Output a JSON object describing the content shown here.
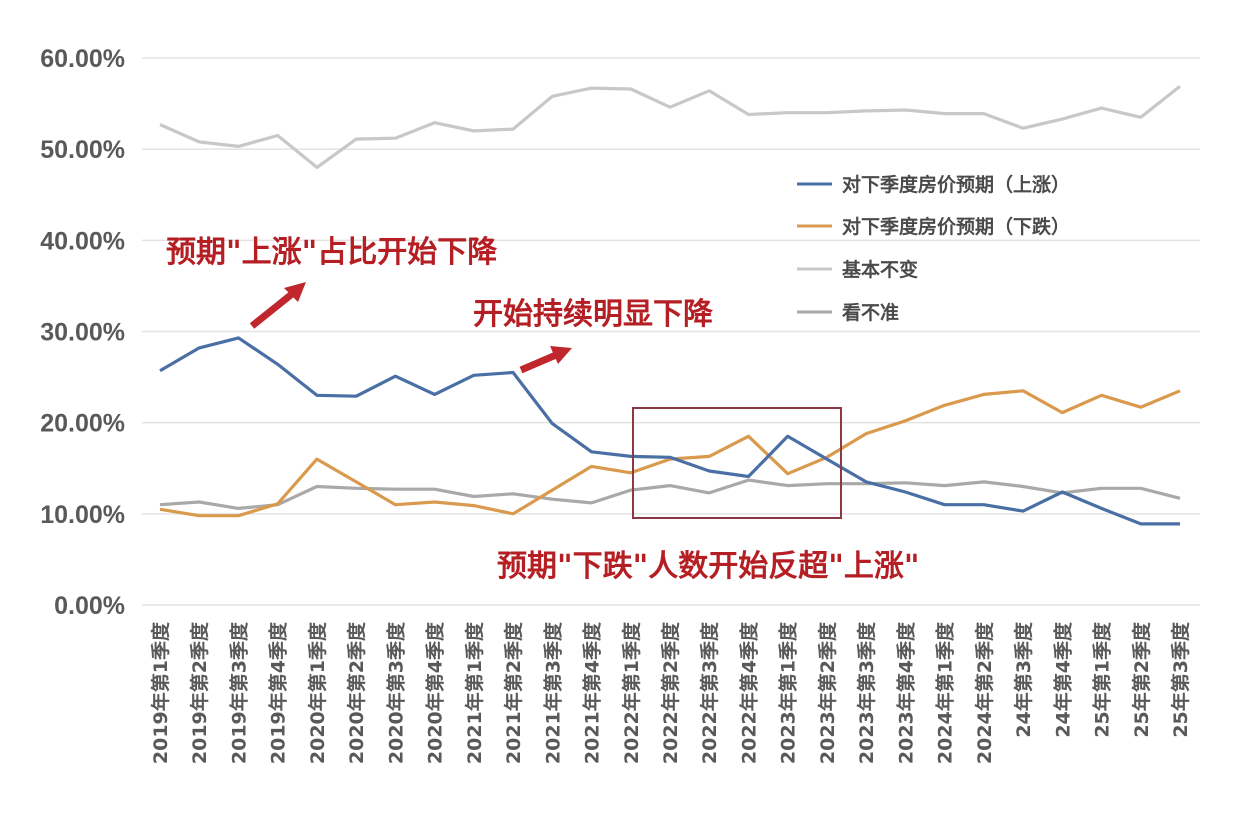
{
  "chart_data": {
    "type": "line",
    "title": "",
    "xlabel": "",
    "ylabel": "",
    "ylim": [
      0,
      60
    ],
    "yticks": [
      "0.00%",
      "10.00%",
      "20.00%",
      "30.00%",
      "40.00%",
      "50.00%",
      "60.00%"
    ],
    "grid": true,
    "legend_position": "upper right inside",
    "categories": [
      "2019年第1季度",
      "2019年第2季度",
      "2019年第3季度",
      "2019年第4季度",
      "2020年第1季度",
      "2020年第2季度",
      "2020年第3季度",
      "2020年第4季度",
      "2021年第1季度",
      "2021年第2季度",
      "2021年第3季度",
      "2021年第4季度",
      "2022年第1季度",
      "2022年第2季度",
      "2022年第3季度",
      "2022年第4季度",
      "2023年第1季度",
      "2023年第2季度",
      "2023年第3季度",
      "2023年第4季度",
      "2024年第1季度",
      "2024年第2季度",
      "24年第3季度",
      "24年第4季度",
      "25年第1季度",
      "25年第2季度",
      "25年第3季度"
    ],
    "series": [
      {
        "name": "对下季度房价预期（上涨）",
        "color": "#4a6fa5",
        "values": [
          25.7,
          28.2,
          29.3,
          26.4,
          23.0,
          22.9,
          25.1,
          23.1,
          25.2,
          25.5,
          19.9,
          16.8,
          16.3,
          16.2,
          14.7,
          14.1,
          18.5,
          16.0,
          13.5,
          12.4,
          11.0,
          11.0,
          10.3,
          12.4,
          10.6,
          8.9,
          8.9
        ]
      },
      {
        "name": "对下季度房价预期（下跌）",
        "color": "#d99a4e",
        "values": [
          10.5,
          9.8,
          9.8,
          11.1,
          16.0,
          13.5,
          11.0,
          11.3,
          10.9,
          10.0,
          12.6,
          15.2,
          14.5,
          16.0,
          16.3,
          18.5,
          14.4,
          16.2,
          18.8,
          20.2,
          21.9,
          23.1,
          23.5,
          21.1,
          23.0,
          21.7,
          23.5
        ]
      },
      {
        "name": "基本不变",
        "color": "#c8c8c8",
        "values": [
          52.7,
          50.8,
          50.3,
          51.5,
          48.0,
          51.1,
          51.2,
          52.9,
          52.0,
          52.2,
          55.8,
          56.7,
          56.6,
          54.6,
          56.4,
          53.8,
          54.0,
          54.0,
          54.2,
          54.3,
          53.9,
          53.9,
          52.3,
          53.3,
          54.5,
          53.5,
          56.9
        ]
      },
      {
        "name": "看不准",
        "color": "#a9a9a9",
        "values": [
          11.0,
          11.3,
          10.6,
          11.0,
          13.0,
          12.8,
          12.7,
          12.7,
          11.9,
          12.2,
          11.6,
          11.2,
          12.6,
          13.1,
          12.3,
          13.7,
          13.1,
          13.3,
          13.3,
          13.4,
          13.1,
          13.5,
          13.0,
          12.3,
          12.8,
          12.8,
          11.7
        ]
      }
    ],
    "annotations": [
      {
        "text": "预期\"上涨\"占比开始下降",
        "color": "#b51f24",
        "arrow": true
      },
      {
        "text": "开始持续明显下降",
        "color": "#b51f24",
        "arrow": true
      },
      {
        "text": "预期\"下跌\"人数开始反超\"上涨\"",
        "color": "#b51f24",
        "highlight_box": "2022年第1季度 to 2023年第2季度"
      }
    ]
  },
  "annotations": {
    "a1": "预期\"上涨\"占比开始下降",
    "a2": "开始持续明显下降",
    "a3": "预期\"下跌\"人数开始反超\"上涨\""
  },
  "legend": [
    {
      "label": "对下季度房价预期（上涨）",
      "color": "#4a6fa5"
    },
    {
      "label": "对下季度房价预期（下跌）",
      "color": "#d99a4e"
    },
    {
      "label": "基本不变",
      "color": "#c8c8c8"
    },
    {
      "label": "看不准",
      "color": "#a9a9a9"
    }
  ],
  "colors": {
    "grid": "#e3e3e3",
    "axis_text": "#595959",
    "annotation": "#b51f24",
    "box": "#8a3a44"
  }
}
